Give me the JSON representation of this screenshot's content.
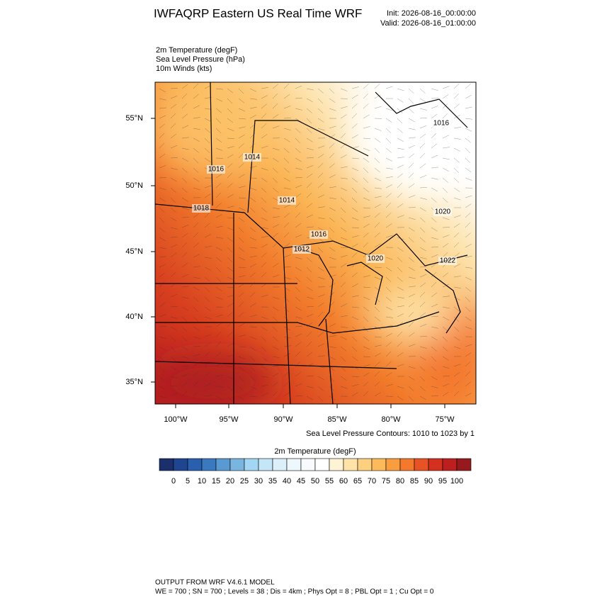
{
  "header": {
    "title": "IWFAQRP Eastern US Real Time WRF",
    "init": "Init: 2026-08-16_00:00:00",
    "valid": "Valid: 2026-08-16_01:00:00"
  },
  "fields": [
    "2m Temperature   (degF)",
    "Sea Level Pressure   (hPa)",
    "10m Winds   (kts)"
  ],
  "map": {
    "lat_ticks": [
      "55°N",
      "50°N",
      "45°N",
      "40°N",
      "35°N"
    ],
    "lon_ticks": [
      "100°W",
      "95°W",
      "90°W",
      "85°W",
      "80°W",
      "75°W"
    ],
    "pressure_labels": [
      "1014",
      "1016",
      "1014",
      "1016",
      "1012",
      "1018",
      "1016",
      "1020",
      "1020",
      "1022"
    ],
    "contour_note": "Sea Level Pressure Contours: 1010 to 1023 by 1"
  },
  "colorbar": {
    "title": "2m Temperature  (degF)",
    "labels": [
      "0",
      "5",
      "10",
      "15",
      "20",
      "25",
      "30",
      "35",
      "40",
      "45",
      "50",
      "55",
      "60",
      "65",
      "70",
      "75",
      "80",
      "85",
      "90",
      "95",
      "100"
    ],
    "colors": [
      "#1a2f6b",
      "#1f4591",
      "#2a5fad",
      "#3a78c0",
      "#5a9ad2",
      "#7ab5e0",
      "#a3d6f2",
      "#c5e6f7",
      "#dcf0fa",
      "#eef7fc",
      "#f8fbfd",
      "#ffffff",
      "#fff3d6",
      "#ffe3a8",
      "#fdd080",
      "#fdba5b",
      "#f99d3e",
      "#f5792c",
      "#e85325",
      "#d43020",
      "#bd1f20",
      "#961a1d"
    ]
  },
  "footer": {
    "line1": "OUTPUT FROM WRF V4.6.1 MODEL",
    "line2": "WE = 700 ; SN = 700 ; Levels = 38 ; Dis = 4km ; Phys Opt = 8 ; PBL Opt = 1 ; Cu Opt = 0"
  }
}
